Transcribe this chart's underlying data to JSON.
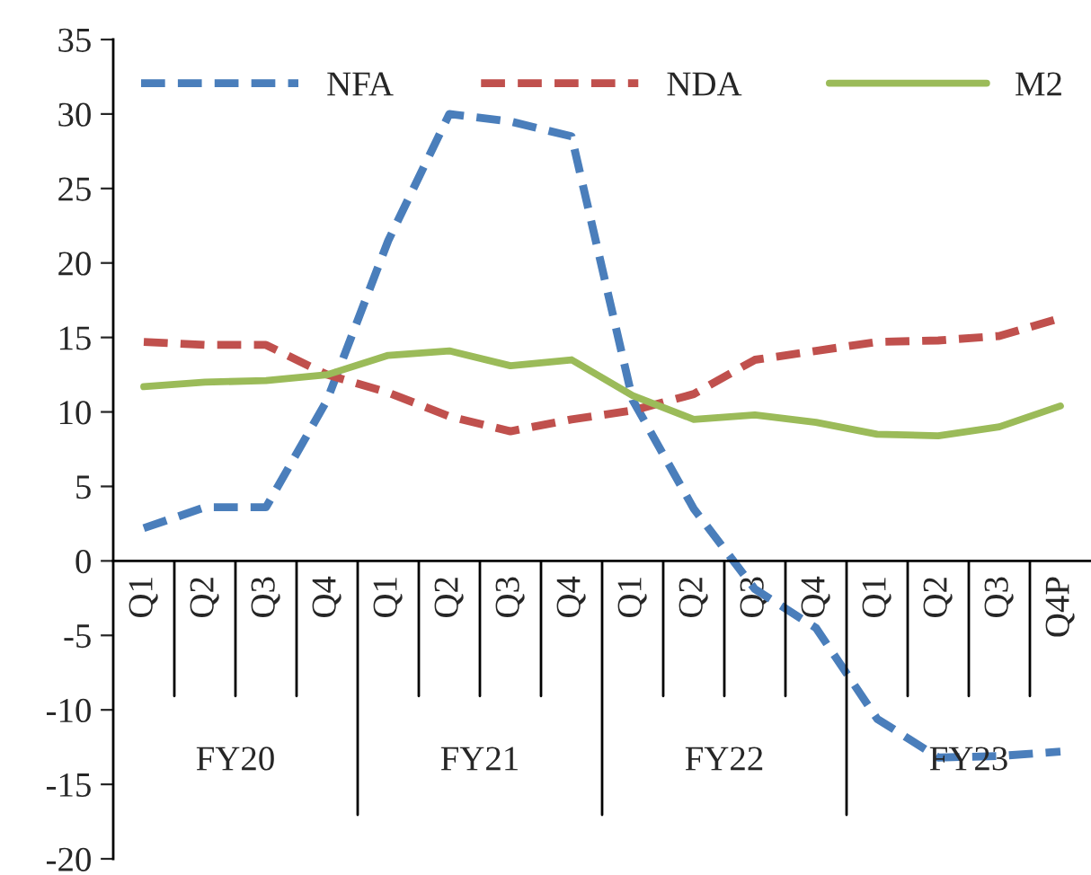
{
  "chart_data": {
    "type": "line",
    "categories": [
      "Q1",
      "Q2",
      "Q3",
      "Q4",
      "Q1",
      "Q2",
      "Q3",
      "Q4",
      "Q1",
      "Q2",
      "Q3",
      "Q4",
      "Q1",
      "Q2",
      "Q3",
      "Q4P"
    ],
    "series": [
      {
        "name": "NFA",
        "color": "#4a7ebb",
        "line_style": "dashed",
        "values": [
          2.2,
          3.6,
          3.6,
          10.8,
          21.5,
          30.0,
          29.5,
          28.5,
          10.8,
          3.5,
          -1.9,
          -4.5,
          -10.6,
          -13.2,
          -13.1,
          -12.8
        ]
      },
      {
        "name": "NDA",
        "color": "#c0504d",
        "line_style": "dashed",
        "values": [
          14.7,
          14.5,
          14.5,
          12.5,
          11.3,
          9.7,
          8.7,
          9.5,
          10.1,
          11.2,
          13.5,
          14.1,
          14.7,
          14.8,
          15.1,
          16.3
        ]
      },
      {
        "name": "M2",
        "color": "#9bbb59",
        "line_style": "solid",
        "values": [
          11.7,
          12.0,
          12.1,
          12.5,
          13.8,
          14.1,
          13.1,
          13.5,
          11.1,
          9.5,
          9.8,
          9.3,
          8.5,
          8.4,
          9.0,
          10.4
        ]
      }
    ],
    "annotations": [
      "FY20",
      "FY21",
      "FY22",
      "FY23"
    ],
    "ylim": [
      -20,
      35
    ],
    "yticks": [
      -20,
      -15,
      -10,
      -5,
      0,
      5,
      10,
      15,
      20,
      25,
      30,
      35
    ],
    "grid": false,
    "legend": "top"
  }
}
